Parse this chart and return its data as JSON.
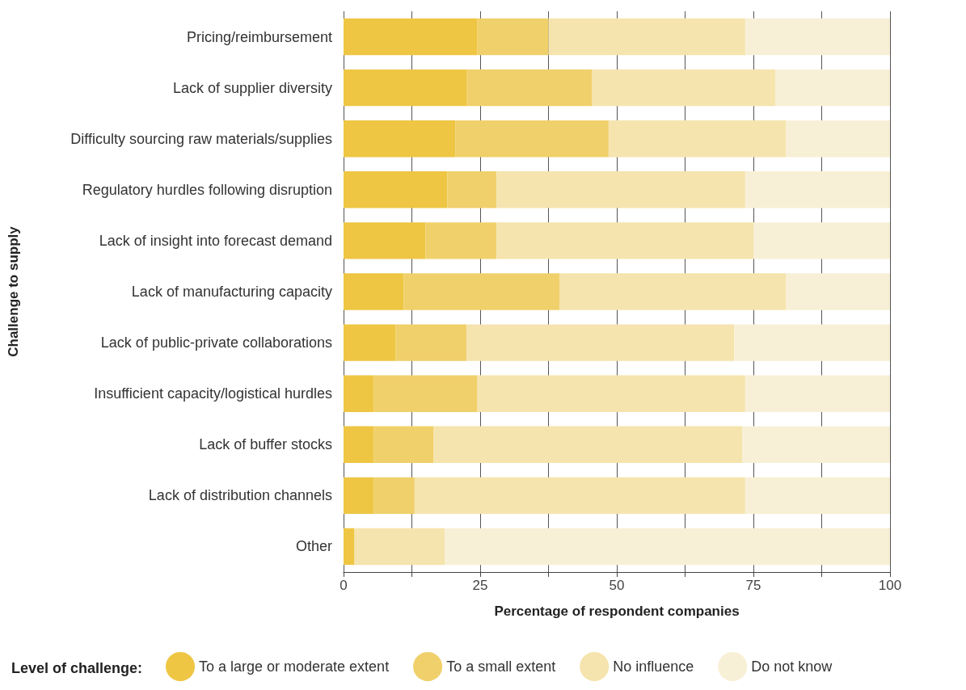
{
  "chart_data": {
    "type": "bar",
    "orientation": "horizontal",
    "stacked": true,
    "xlabel": "Percentage of respondent companies",
    "ylabel": "Challenge to supply",
    "legend_title": "Level of challenge:",
    "legend": "bottom",
    "grid": "x",
    "categories": [
      "Pricing/reimbursement",
      "Lack of supplier diversity",
      "Difficulty sourcing raw materials/supplies",
      "Regulatory hurdles following disruption",
      "Lack of insight into forecast demand",
      "Lack of manufacturing capacity",
      "Lack of public-private collaborations",
      "Insufficient capacity/logistical hurdles",
      "Lack of buffer stocks",
      "Lack of distribution channels",
      "Other"
    ],
    "xlim": [
      0,
      100
    ],
    "xticks": [
      0,
      {
        "value": 12.5,
        "label": null
      },
      25,
      {
        "value": 37.5,
        "label": null
      },
      50,
      {
        "value": 62.5,
        "label": null
      },
      75,
      {
        "value": 87.5,
        "label": null
      },
      100
    ],
    "series": [
      {
        "name": "To a large or moderate extent",
        "color": "#eec643",
        "values": [
          24.5,
          22.5,
          20.5,
          19,
          15,
          11,
          9.5,
          5.5,
          5.5,
          5.5,
          2
        ]
      },
      {
        "name": "To a small extent",
        "color": "#f0d06a",
        "values": [
          13,
          23,
          28,
          9,
          13,
          28.5,
          13,
          19,
          11,
          7.5,
          0
        ]
      },
      {
        "name": "No influence",
        "color": "#f6e4ae",
        "values": [
          36,
          33.5,
          32.5,
          45.5,
          47,
          41.5,
          49,
          49,
          56.5,
          60.5,
          16.5
        ]
      },
      {
        "name": "Do not know",
        "color": "#f8f0d6",
        "values": [
          26.5,
          21,
          19,
          26.5,
          25,
          19,
          28.5,
          26.5,
          27,
          26.5,
          81.5
        ]
      }
    ]
  }
}
